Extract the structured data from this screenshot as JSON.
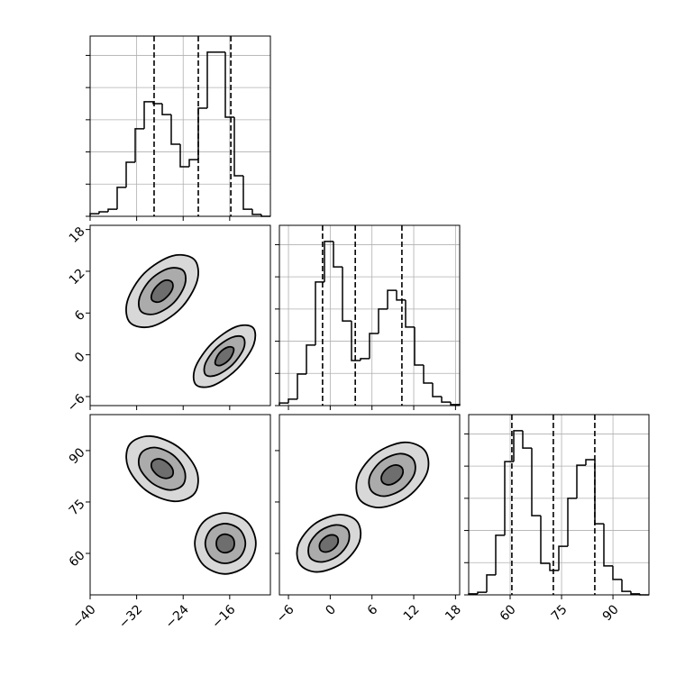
{
  "chart_data": {
    "type": "corner",
    "params": [
      {
        "lim": [
          -40,
          -9
        ],
        "ticks": [
          {
            "value": -40,
            "label": "−40"
          },
          {
            "value": -32,
            "label": "−32"
          },
          {
            "value": -24,
            "label": "−24"
          },
          {
            "value": -16,
            "label": "−16"
          }
        ],
        "bins": [
          -40,
          -38.45,
          -36.9,
          -35.35,
          -33.8,
          -32.25,
          -30.7,
          -29.15,
          -27.6,
          -26.05,
          -24.5,
          -22.95,
          -21.4,
          -19.85,
          -18.3,
          -16.75,
          -15.2,
          -13.65,
          -12.1,
          -10.55,
          -9
        ],
        "counts": [
          8,
          14,
          22,
          90,
          168,
          272,
          356,
          350,
          316,
          224,
          154,
          176,
          336,
          510,
          510,
          308,
          126,
          22,
          6,
          0
        ],
        "quantiles": [
          -29,
          -21.4,
          -15.8
        ],
        "ylim": [
          0,
          560
        ],
        "yticks": [
          0,
          100,
          200,
          300,
          400,
          500
        ]
      },
      {
        "lim": [
          -7.3,
          18.6
        ],
        "ticks": [
          {
            "value": -6,
            "label": "−6"
          },
          0,
          6,
          12,
          18
        ],
        "bins": [
          -7.3,
          -6.005,
          -4.71,
          -3.415,
          -2.12,
          -0.825,
          0.47,
          1.765,
          3.06,
          4.355,
          5.65,
          6.945,
          8.24,
          9.535,
          10.83,
          12.125,
          13.42,
          14.715,
          16.01,
          17.305,
          18.6
        ],
        "counts": [
          8,
          20,
          98,
          188,
          384,
          510,
          431,
          263,
          140,
          146,
          224,
          300,
          358,
          328,
          244,
          126,
          70,
          28,
          11,
          3
        ],
        "quantiles": [
          -1.1,
          3.6,
          10.3
        ],
        "ylim": [
          0,
          560
        ],
        "yticks": [
          0,
          100,
          200,
          300,
          400,
          500
        ]
      },
      {
        "lim": [
          47.9,
          100.5
        ],
        "ticks": [
          60,
          75,
          90
        ],
        "bins": [
          47.9,
          50.53,
          53.16,
          55.79,
          58.42,
          61.05,
          63.68,
          66.31,
          68.94,
          71.57,
          74.2,
          76.83,
          79.46,
          82.09,
          84.72,
          87.35,
          89.98,
          92.61,
          95.24,
          97.87,
          100.5
        ],
        "counts": [
          3,
          8,
          62,
          185,
          414,
          510,
          456,
          246,
          98,
          76,
          151,
          300,
          403,
          420,
          221,
          90,
          48,
          11,
          3,
          0
        ],
        "quantiles": [
          60.5,
          72.6,
          84.7
        ],
        "ylim": [
          0,
          560
        ],
        "yticks": [
          0,
          100,
          200,
          300,
          400,
          500
        ]
      }
    ],
    "pairs": [
      [
        {
          "contours": [
            {
              "x": [
                -22.1,
                -21.6,
                -24.5,
                -29.3,
                -33.1,
                -33.6,
                -30.7,
                -25.9
              ],
              "y": [
                13.7,
                10.6,
                6.6,
                4.1,
                4.6,
                7.7,
                11.7,
                14.2
              ]
            },
            {
              "x": [
                -24.0,
                -23.7,
                -25.6,
                -28.7,
                -31.2,
                -31.5,
                -29.6,
                -26.5
              ],
              "y": [
                12.1,
                10.1,
                7.5,
                5.9,
                6.2,
                8.2,
                10.8,
                12.4
              ]
            },
            {
              "x": [
                -26.0,
                -25.8,
                -26.7,
                -28.1,
                -29.3,
                -29.4,
                -28.5,
                -27.1
              ],
              "y": [
                10.5,
                9.6,
                8.4,
                7.6,
                7.8,
                8.7,
                9.9,
                10.7
              ]
            },
            {
              "x": [
                -12.0,
                -11.9,
                -14.7,
                -18.8,
                -21.8,
                -21.9,
                -19.1,
                -15.0
              ],
              "y": [
                3.9,
                1.4,
                -2.0,
                -4.4,
                -4.3,
                -1.8,
                1.6,
                4.0
              ]
            },
            {
              "x": [
                -13.7,
                -13.6,
                -15.5,
                -18.2,
                -20.1,
                -20.2,
                -18.3,
                -15.6
              ],
              "y": [
                2.5,
                0.9,
                -1.4,
                -2.9,
                -2.9,
                -1.3,
                1.0,
                2.5
              ]
            },
            {
              "x": [
                -15.4,
                -15.4,
                -16.2,
                -17.5,
                -18.4,
                -18.4,
                -17.6,
                -16.3
              ],
              "y": [
                1.0,
                0.3,
                -0.8,
                -1.5,
                -1.4,
                -0.7,
                0.4,
                1.1
              ]
            }
          ]
        }
      ],
      [
        {
          "contours": [
            {
              "x": [
                -22.0,
                -25.6,
                -30.4,
                -33.5,
                -33.2,
                -29.6,
                -24.8,
                -21.7
              ],
              "y": [
                77.6,
                75.2,
                78.4,
                85.3,
                91.8,
                94.2,
                91.0,
                84.2
              ]
            },
            {
              "x": [
                -24.0,
                -26.3,
                -29.4,
                -31.5,
                -31.2,
                -28.9,
                -25.8,
                -23.8
              ],
              "y": [
                80.1,
                78.5,
                80.6,
                85.1,
                89.3,
                90.9,
                88.8,
                84.3
              ]
            },
            {
              "x": [
                -25.9,
                -27.0,
                -28.4,
                -29.4,
                -29.3,
                -28.2,
                -26.8,
                -25.8
              ],
              "y": [
                82.6,
                81.9,
                82.8,
                84.9,
                86.8,
                87.6,
                86.6,
                84.5
              ]
            },
            {
              "x": [
                -11.5,
                -13.0,
                -16.8,
                -20.5,
                -22.0,
                -20.5,
                -16.8,
                -13.0
              ],
              "y": [
                62.9,
                56.6,
                54.0,
                56.6,
                62.9,
                69.2,
                71.8,
                69.2
              ]
            },
            {
              "x": [
                -13.3,
                -14.3,
                -16.8,
                -19.2,
                -20.2,
                -19.2,
                -16.8,
                -14.3
              ],
              "y": [
                62.9,
                58.8,
                57.1,
                58.8,
                62.9,
                67.0,
                68.7,
                67.0
              ]
            },
            {
              "x": [
                -15.2,
                -15.6,
                -16.8,
                -17.9,
                -18.3,
                -17.9,
                -16.8,
                -15.6
              ],
              "y": [
                62.9,
                61.0,
                60.2,
                61.0,
                62.9,
                64.8,
                65.6,
                64.8
              ]
            }
          ]
        },
        {
          "contours": [
            {
              "x": [
                13.6,
                13.9,
                11.2,
                7.2,
                4.2,
                4.0,
                6.6,
                10.6
              ],
              "y": [
                90.0,
                83.5,
                76.6,
                73.4,
                75.8,
                82.4,
                89.2,
                92.4
              ]
            },
            {
              "x": [
                11.9,
                12.1,
                10.4,
                7.8,
                5.9,
                5.7,
                7.4,
                10.0
              ],
              "y": [
                87.5,
                83.3,
                78.8,
                76.7,
                78.3,
                82.5,
                87.0,
                89.1
              ]
            },
            {
              "x": [
                10.3,
                10.4,
                9.6,
                8.4,
                7.5,
                7.4,
                8.2,
                9.4
              ],
              "y": [
                85.0,
                83.1,
                81.0,
                80.0,
                80.8,
                82.7,
                84.8,
                85.8
              ]
            },
            {
              "x": [
                3.9,
                4.2,
                1.9,
                -1.7,
                -4.3,
                -4.6,
                -2.3,
                1.3
              ],
              "y": [
                69.2,
                63.4,
                57.4,
                54.6,
                56.7,
                62.4,
                68.5,
                71.3
              ]
            },
            {
              "x": [
                2.5,
                2.6,
                1.1,
                -1.2,
                -2.9,
                -3.0,
                -1.5,
                0.8
              ],
              "y": [
                67.0,
                63.2,
                59.3,
                57.5,
                58.8,
                62.6,
                66.5,
                68.3
              ]
            },
            {
              "x": [
                1.0,
                1.1,
                0.4,
                -0.6,
                -1.4,
                -1.5,
                -0.8,
                0.2
              ],
              "y": [
                64.8,
                63.0,
                61.2,
                60.4,
                61.0,
                62.8,
                64.6,
                65.4
              ]
            }
          ]
        }
      ]
    ]
  }
}
